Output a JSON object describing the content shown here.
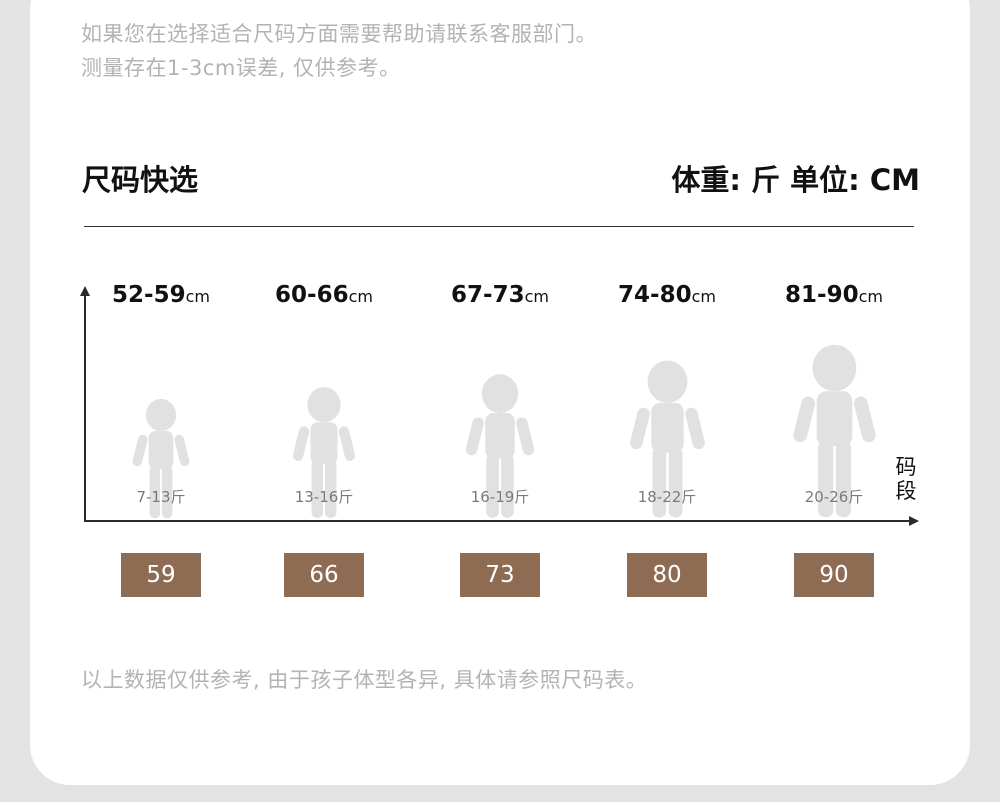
{
  "intro": {
    "line1": "如果您在选择适合尺码方面需要帮助请联系客服部门。",
    "line2": "测量存在1-3cm误差, 仅供参考。"
  },
  "title": "尺码快选",
  "unit_info": "体重: 斤  单位: CM",
  "x_axis_label": "码段",
  "height_unit": "cm",
  "sizes": [
    {
      "height": "52-59",
      "weight": "7-13斤",
      "size": "59"
    },
    {
      "height": "60-66",
      "weight": "13-16斤",
      "size": "66"
    },
    {
      "height": "67-73",
      "weight": "16-19斤",
      "size": "73"
    },
    {
      "height": "74-80",
      "weight": "18-22斤",
      "size": "80"
    },
    {
      "height": "81-90",
      "weight": "20-26斤",
      "size": "90"
    }
  ],
  "footnote": "以上数据仅供参考, 由于孩子体型各异, 具体请参照尺码表。",
  "colors": {
    "size_tag": "#8e6c53",
    "figure": "#e1e1e1"
  }
}
